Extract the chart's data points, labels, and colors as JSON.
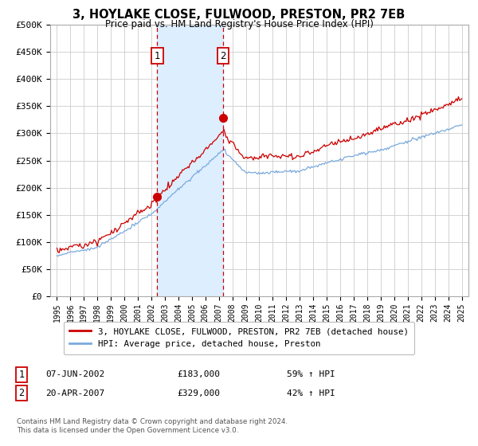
{
  "title": "3, HOYLAKE CLOSE, FULWOOD, PRESTON, PR2 7EB",
  "subtitle": "Price paid vs. HM Land Registry's House Price Index (HPI)",
  "house_color": "#cc0000",
  "hpi_color": "#7aaadd",
  "shade_color": "#ddeeff",
  "grid_color": "#cccccc",
  "bg_color": "#ffffff",
  "ylim": [
    0,
    500000
  ],
  "yticks": [
    0,
    50000,
    100000,
    150000,
    200000,
    250000,
    300000,
    350000,
    400000,
    450000,
    500000
  ],
  "ytick_labels": [
    "£0",
    "£50K",
    "£100K",
    "£150K",
    "£200K",
    "£250K",
    "£300K",
    "£350K",
    "£400K",
    "£450K",
    "£500K"
  ],
  "xlim_start": 1994.5,
  "xlim_end": 2025.5,
  "sale1_x": 2002.44,
  "sale1_y": 183000,
  "sale1_label": "07-JUN-2002",
  "sale1_price": "£183,000",
  "sale1_hpi": "59% ↑ HPI",
  "sale2_x": 2007.3,
  "sale2_y": 329000,
  "sale2_label": "20-APR-2007",
  "sale2_price": "£329,000",
  "sale2_hpi": "42% ↑ HPI",
  "legend_house": "3, HOYLAKE CLOSE, FULWOOD, PRESTON, PR2 7EB (detached house)",
  "legend_hpi": "HPI: Average price, detached house, Preston",
  "footnote": "Contains HM Land Registry data © Crown copyright and database right 2024.\nThis data is licensed under the Open Government Licence v3.0."
}
